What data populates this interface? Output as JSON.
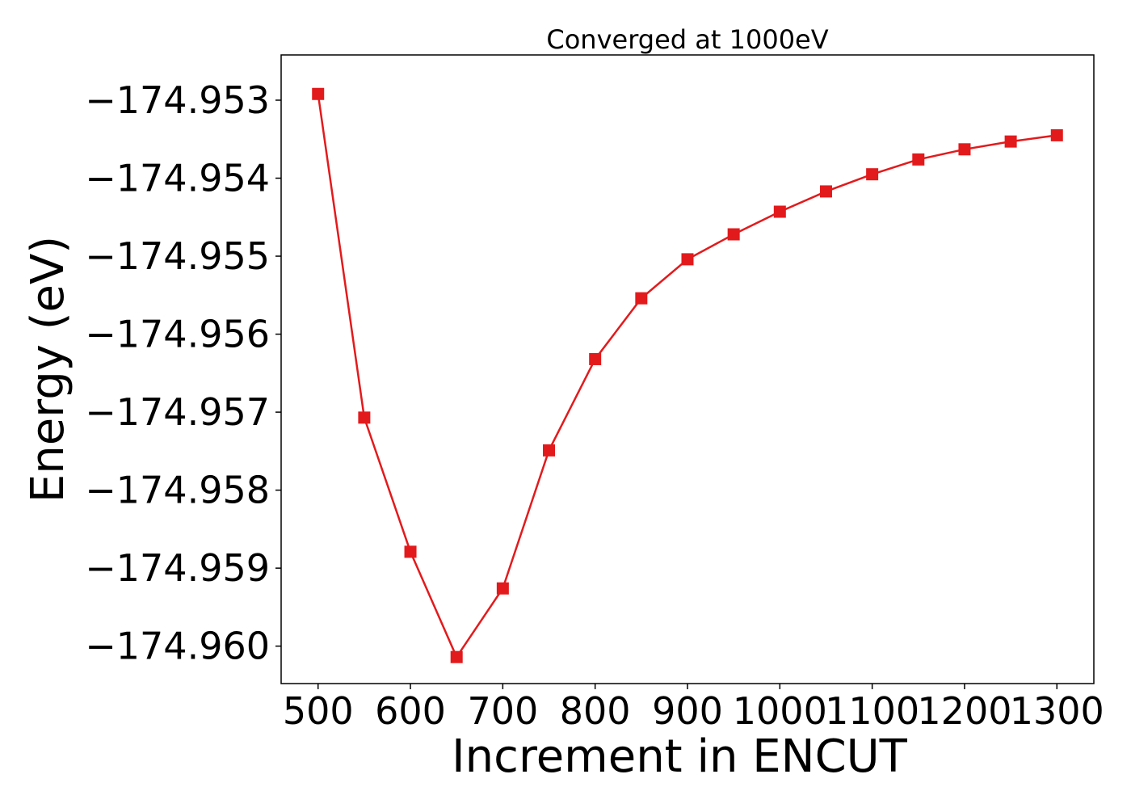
{
  "chart_data": {
    "type": "line",
    "title": "Converged at 1000eV",
    "xlabel": "Increment in ENCUT",
    "ylabel": "Energy (eV)",
    "xlim": [
      460,
      1340
    ],
    "ylim": [
      -174.96048,
      -174.95242
    ],
    "xticks": [
      500,
      600,
      700,
      800,
      900,
      1000,
      1100,
      1200,
      1300
    ],
    "yticks": [
      -174.953,
      -174.954,
      -174.955,
      -174.956,
      -174.957,
      -174.958,
      -174.959,
      -174.96
    ],
    "ytick_labels": [
      "−174.953",
      "−174.954",
      "−174.955",
      "−174.956",
      "−174.957",
      "−174.958",
      "−174.959",
      "−174.960"
    ],
    "grid": false,
    "series": [
      {
        "color": "#e31a1c",
        "marker": "square",
        "x": [
          500,
          550,
          600,
          650,
          700,
          750,
          800,
          850,
          900,
          950,
          1000,
          1050,
          1100,
          1150,
          1200,
          1250,
          1300
        ],
        "y": [
          -174.95292,
          -174.95707,
          -174.95879,
          -174.96014,
          -174.95926,
          -174.95749,
          -174.95632,
          -174.95554,
          -174.95504,
          -174.95472,
          -174.95443,
          -174.95417,
          -174.95395,
          -174.95376,
          -174.95363,
          -174.95353,
          -174.95345
        ]
      }
    ]
  }
}
